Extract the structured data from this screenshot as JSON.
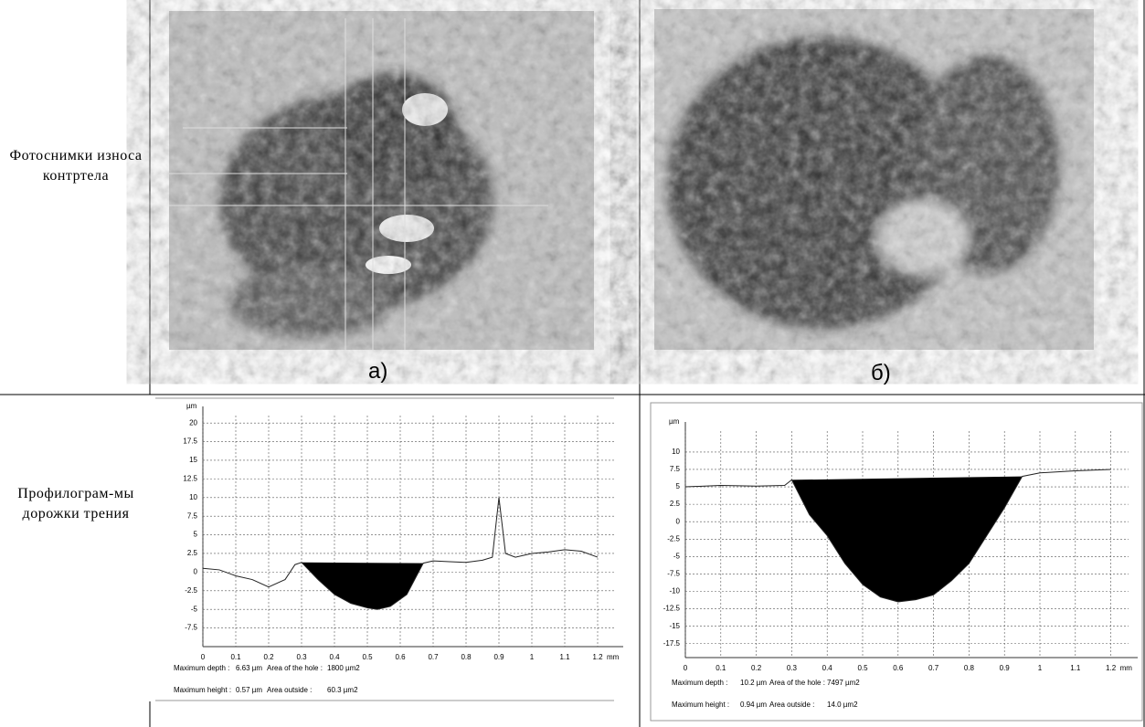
{
  "table": {
    "rows": [
      {
        "label": "Фотоснимки износа контртела",
        "captions": [
          "а)",
          "б)"
        ]
      },
      {
        "label": "Профилограм-мы дорожки трения"
      }
    ]
  },
  "chart_data": [
    {
      "type": "line",
      "y_label": "µm",
      "x_unit": "mm",
      "x": [
        0,
        0.05,
        0.1,
        0.15,
        0.2,
        0.25,
        0.28,
        0.3,
        0.35,
        0.4,
        0.45,
        0.5,
        0.53,
        0.57,
        0.62,
        0.67,
        0.7,
        0.75,
        0.8,
        0.85,
        0.88,
        0.9,
        0.92,
        0.95,
        1.0,
        1.05,
        1.1,
        1.15,
        1.2
      ],
      "values": [
        0.5,
        0.3,
        -0.5,
        -1,
        -2,
        -1,
        1,
        1.3,
        -1,
        -3,
        -4.2,
        -4.8,
        -5,
        -4.6,
        -3,
        1.2,
        1.5,
        1.4,
        1.3,
        1.6,
        2,
        10,
        2.5,
        2,
        2.5,
        2.7,
        3,
        2.8,
        2
      ],
      "hole": [
        7,
        15
      ],
      "xlim": [
        0,
        1.25
      ],
      "ylim": [
        -10,
        21
      ],
      "xticks": [
        0,
        0.1,
        0.2,
        0.3,
        0.4,
        0.5,
        0.6,
        0.7,
        0.8,
        0.9,
        1,
        1.1,
        1.2
      ],
      "yticks": [
        20,
        17.5,
        15,
        12.5,
        10,
        7.5,
        5,
        2.5,
        0,
        -2.5,
        -5,
        -7.5
      ],
      "stats": [
        [
          "Maximum depth :",
          "6.63 µm",
          "Area of the hole :",
          "1800 µm2"
        ],
        [
          "Maximum height :",
          "0.57 µm",
          "Area outside :",
          "60.3 µm2"
        ]
      ]
    },
    {
      "type": "line",
      "y_label": "µm",
      "x_unit": "mm",
      "x": [
        0,
        0.1,
        0.2,
        0.28,
        0.3,
        0.35,
        0.4,
        0.45,
        0.5,
        0.55,
        0.6,
        0.65,
        0.7,
        0.75,
        0.8,
        0.85,
        0.9,
        0.95,
        1.0,
        1.1,
        1.2
      ],
      "values": [
        5,
        5.2,
        5.1,
        5.2,
        6,
        1,
        -2,
        -6,
        -9,
        -10.8,
        -11.5,
        -11.2,
        -10.5,
        -8.5,
        -6,
        -2,
        2,
        6.5,
        7,
        7.3,
        7.5
      ],
      "hole": [
        4,
        17
      ],
      "xlim": [
        0,
        1.25
      ],
      "ylim": [
        -19.5,
        13
      ],
      "xticks": [
        0,
        0.1,
        0.2,
        0.3,
        0.4,
        0.5,
        0.6,
        0.7,
        0.8,
        0.9,
        1,
        1.1,
        1.2
      ],
      "yticks": [
        10,
        7.5,
        5,
        2.5,
        0,
        -2.5,
        -5,
        -7.5,
        -10,
        -12.5,
        -15,
        -17.5
      ],
      "stats": [
        [
          "Maximum depth :",
          "10.2 µm",
          "Area of the hole :",
          "7497 µm2"
        ],
        [
          "Maximum height :",
          "0.94 µm",
          "Area outside :",
          "14.0 µm2"
        ]
      ]
    }
  ]
}
